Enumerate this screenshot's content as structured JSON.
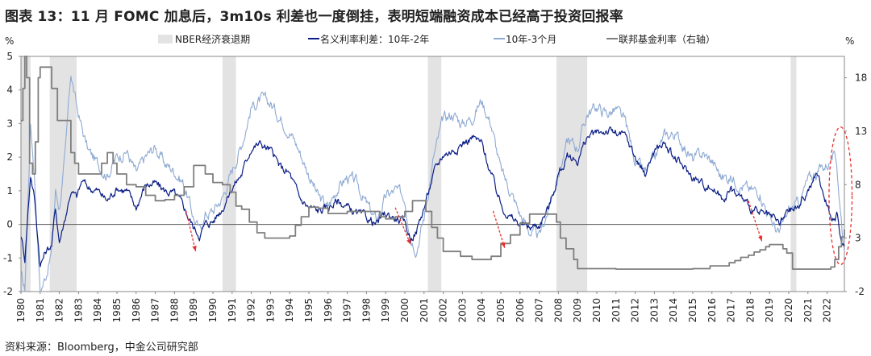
{
  "title": "图表 13：11 月 FOMC 加息后，3m10s 利差也一度倒挂，表明短端融资成本已经高于投资回报率",
  "source": "资料来源：Bloomberg，中金公司研究部",
  "chart_data": {
    "type": "line",
    "left_axis_unit": "%",
    "right_axis_unit": "%",
    "ylim_left": [
      -2,
      5
    ],
    "ylim_right": [
      -2,
      20
    ],
    "yticks_left": [
      "5",
      "4",
      "3",
      "2",
      "1",
      "0",
      "-1",
      "-2"
    ],
    "yticks_right": [
      "18",
      "13",
      "8",
      "3",
      "-2"
    ],
    "x_range": [
      1980.0,
      2022.9
    ],
    "xticks": [
      "1980",
      "1981",
      "1982",
      "1983",
      "1984",
      "1985",
      "1986",
      "1987",
      "1988",
      "1989",
      "1990",
      "1991",
      "1992",
      "1993",
      "1994",
      "1995",
      "1996",
      "1997",
      "1998",
      "1999",
      "2000",
      "2001",
      "2002",
      "2003",
      "2004",
      "2005",
      "2006",
      "2007",
      "2008",
      "2009",
      "2010",
      "2011",
      "2012",
      "2013",
      "2014",
      "2015",
      "2016",
      "2017",
      "2018",
      "2019",
      "2020",
      "2021",
      "2022"
    ],
    "legend": [
      "NBER经济衰退期",
      "名义利率利差：10年-2年",
      "10年-3个月",
      "联邦基金利率（右轴）"
    ],
    "colors": {
      "recession": "#e3e3e3",
      "spread_10y2y": "#0b1e86",
      "spread_10y3m": "#8eaad3",
      "fed_funds": "#7f7f7f",
      "arrow": "#e8312f",
      "ellipse": "#e8312f",
      "zero": "#555555"
    },
    "recessions": [
      [
        1980.0,
        1980.5
      ],
      [
        1981.5,
        1982.9
      ],
      [
        1990.5,
        1991.2
      ],
      [
        2001.2,
        2001.9
      ],
      [
        2007.9,
        2009.5
      ],
      [
        2020.1,
        2020.4
      ]
    ],
    "series": [
      {
        "name": "名义利率利差：10年-2年",
        "axis": "left",
        "x": [
          1980.0,
          1980.2,
          1980.5,
          1980.7,
          1981.0,
          1981.3,
          1981.6,
          1981.8,
          1982.0,
          1982.3,
          1982.6,
          1982.9,
          1983.2,
          1983.5,
          1984.0,
          1984.5,
          1985.0,
          1985.5,
          1986.0,
          1986.5,
          1987.0,
          1987.5,
          1988.0,
          1988.5,
          1989.0,
          1989.3,
          1989.6,
          1990.0,
          1990.5,
          1991.0,
          1991.5,
          1992.0,
          1992.5,
          1993.0,
          1993.5,
          1994.0,
          1994.5,
          1995.0,
          1995.5,
          1996.0,
          1996.5,
          1997.0,
          1997.5,
          1998.0,
          1998.5,
          1999.0,
          1999.5,
          2000.0,
          2000.3,
          2000.6,
          2001.0,
          2001.5,
          2002.0,
          2002.5,
          2003.0,
          2003.5,
          2004.0,
          2004.5,
          2005.0,
          2005.5,
          2006.0,
          2006.5,
          2007.0,
          2007.5,
          2008.0,
          2008.5,
          2009.0,
          2009.5,
          2010.0,
          2010.5,
          2011.0,
          2011.5,
          2012.0,
          2012.5,
          2013.0,
          2013.5,
          2014.0,
          2014.5,
          2015.0,
          2015.5,
          2016.0,
          2016.5,
          2017.0,
          2017.5,
          2018.0,
          2018.5,
          2019.0,
          2019.5,
          2020.0,
          2020.5,
          2021.0,
          2021.5,
          2022.0,
          2022.3,
          2022.5,
          2022.7,
          2022.9
        ],
        "values": [
          -0.3,
          -1.0,
          1.5,
          0.8,
          -1.2,
          -0.8,
          -0.6,
          0.5,
          -0.5,
          0.2,
          1.0,
          0.8,
          1.3,
          1.1,
          1.0,
          0.7,
          1.1,
          1.0,
          0.5,
          1.2,
          1.2,
          1.0,
          0.9,
          0.5,
          -0.1,
          -0.3,
          0.0,
          0.1,
          0.5,
          1.1,
          1.5,
          2.3,
          2.4,
          2.2,
          1.7,
          1.5,
          0.8,
          0.5,
          0.4,
          0.5,
          0.7,
          0.5,
          0.3,
          0.2,
          0.0,
          0.3,
          0.2,
          0.0,
          -0.4,
          -0.2,
          0.5,
          1.5,
          2.1,
          2.2,
          2.4,
          2.6,
          2.4,
          1.5,
          0.6,
          0.2,
          0.0,
          -0.1,
          0.0,
          0.5,
          1.5,
          2.0,
          1.9,
          2.6,
          2.7,
          2.8,
          2.7,
          2.6,
          2.0,
          1.5,
          2.2,
          2.4,
          2.0,
          1.7,
          1.4,
          1.2,
          1.1,
          0.8,
          1.0,
          0.8,
          0.5,
          0.3,
          0.2,
          0.0,
          0.4,
          0.5,
          1.0,
          1.5,
          0.6,
          0.2,
          0.3,
          -0.4,
          -0.6
        ]
      },
      {
        "name": "10年-3个月",
        "axis": "left",
        "x": [
          1980.0,
          1980.2,
          1980.5,
          1980.7,
          1981.0,
          1981.3,
          1981.6,
          1981.8,
          1982.0,
          1982.3,
          1982.6,
          1982.9,
          1983.2,
          1983.5,
          1984.0,
          1984.5,
          1985.0,
          1985.5,
          1986.0,
          1986.5,
          1987.0,
          1987.5,
          1988.0,
          1988.5,
          1989.0,
          1989.3,
          1989.6,
          1990.0,
          1990.5,
          1991.0,
          1991.5,
          1992.0,
          1992.5,
          1993.0,
          1993.5,
          1994.0,
          1994.5,
          1995.0,
          1995.5,
          1996.0,
          1996.5,
          1997.0,
          1997.5,
          1998.0,
          1998.5,
          1999.0,
          1999.5,
          2000.0,
          2000.3,
          2000.6,
          2001.0,
          2001.5,
          2002.0,
          2002.5,
          2003.0,
          2003.5,
          2004.0,
          2004.5,
          2005.0,
          2005.5,
          2006.0,
          2006.5,
          2007.0,
          2007.5,
          2008.0,
          2008.5,
          2009.0,
          2009.5,
          2010.0,
          2010.5,
          2011.0,
          2011.5,
          2012.0,
          2012.5,
          2013.0,
          2013.5,
          2014.0,
          2014.5,
          2015.0,
          2015.5,
          2016.0,
          2016.5,
          2017.0,
          2017.5,
          2018.0,
          2018.5,
          2019.0,
          2019.5,
          2020.0,
          2020.5,
          2021.0,
          2021.5,
          2022.0,
          2022.3,
          2022.5,
          2022.7,
          2022.9
        ],
        "values": [
          -1.5,
          -2.0,
          3.0,
          1.5,
          -2.0,
          -1.5,
          -0.8,
          1.0,
          0.5,
          2.0,
          4.5,
          3.5,
          2.8,
          2.2,
          1.8,
          1.5,
          2.0,
          2.2,
          1.5,
          2.0,
          2.3,
          1.8,
          1.6,
          1.2,
          0.2,
          -0.2,
          0.3,
          0.4,
          0.8,
          1.6,
          2.4,
          3.5,
          3.7,
          3.6,
          3.2,
          2.8,
          2.2,
          1.5,
          0.8,
          0.5,
          1.1,
          1.4,
          1.2,
          0.6,
          0.1,
          0.8,
          1.0,
          0.8,
          -0.3,
          -0.7,
          0.2,
          2.0,
          3.1,
          3.3,
          3.0,
          3.2,
          3.7,
          3.0,
          1.6,
          1.0,
          0.3,
          -0.2,
          -0.4,
          0.5,
          1.5,
          2.5,
          2.3,
          3.3,
          3.5,
          3.3,
          3.4,
          3.0,
          1.9,
          1.5,
          1.9,
          2.6,
          2.7,
          2.4,
          1.9,
          2.1,
          1.9,
          1.4,
          1.4,
          1.2,
          1.0,
          1.0,
          0.2,
          -0.3,
          0.4,
          0.6,
          1.3,
          1.6,
          1.8,
          2.0,
          1.8,
          0.4,
          -0.8
        ]
      },
      {
        "name": "联邦基金利率（右轴）",
        "axis": "right",
        "x": [
          1980.0,
          1980.1,
          1980.2,
          1980.3,
          1980.45,
          1980.6,
          1980.75,
          1980.9,
          1981.0,
          1981.3,
          1981.6,
          1981.9,
          1982.1,
          1982.4,
          1982.6,
          1982.8,
          1983.0,
          1983.6,
          1984.2,
          1984.5,
          1984.8,
          1985.0,
          1985.5,
          1986.0,
          1986.5,
          1987.0,
          1987.5,
          1988.0,
          1988.5,
          1989.0,
          1989.3,
          1989.6,
          1990.0,
          1990.5,
          1990.9,
          1991.2,
          1991.5,
          1991.9,
          1992.3,
          1992.7,
          1993.0,
          1993.5,
          1994.0,
          1994.3,
          1994.6,
          1995.0,
          1995.5,
          1996.0,
          1996.5,
          1997.0,
          1997.5,
          1998.0,
          1998.7,
          1999.0,
          1999.5,
          2000.0,
          2000.4,
          2000.9,
          2001.1,
          2001.4,
          2001.7,
          2002.0,
          2002.5,
          2002.9,
          2003.5,
          2004.0,
          2004.5,
          2005.0,
          2005.5,
          2006.0,
          2006.5,
          2007.0,
          2007.6,
          2007.9,
          2008.1,
          2008.4,
          2008.8,
          2009.0,
          2010.0,
          2011.0,
          2012.0,
          2013.0,
          2014.0,
          2015.0,
          2015.9,
          2016.9,
          2017.2,
          2017.5,
          2017.9,
          2018.2,
          2018.5,
          2018.8,
          2019.0,
          2019.5,
          2019.7,
          2019.9,
          2020.1,
          2020.2,
          2021.0,
          2022.0,
          2022.2,
          2022.4,
          2022.6,
          2022.75,
          2022.9
        ],
        "values": [
          14,
          17,
          20,
          18,
          10,
          9,
          12,
          18,
          19,
          19,
          17,
          14,
          14,
          14,
          11,
          10,
          9,
          9,
          10,
          11,
          10,
          9,
          8,
          7.8,
          7,
          6.5,
          6.6,
          7,
          7.8,
          9.8,
          9.8,
          9,
          8.2,
          8,
          7.3,
          6,
          5.7,
          4.5,
          3.5,
          3,
          3,
          3,
          3.2,
          4.2,
          5,
          5.9,
          5.8,
          5.3,
          5.3,
          5.5,
          5.5,
          5.5,
          5,
          4.8,
          5,
          5.5,
          6.5,
          6.5,
          5.5,
          4,
          3,
          1.75,
          1.75,
          1.3,
          1,
          1,
          1.3,
          2.5,
          3.3,
          4.4,
          5.25,
          5.25,
          5.25,
          4.5,
          3,
          2,
          1,
          0.15,
          0.15,
          0.1,
          0.1,
          0.1,
          0.1,
          0.15,
          0.4,
          0.7,
          0.9,
          1.2,
          1.4,
          1.7,
          1.9,
          2.2,
          2.4,
          2.4,
          2,
          1.6,
          1.6,
          0.1,
          0.1,
          0.1,
          0.3,
          1.0,
          2.2,
          3.1,
          3.8
        ]
      }
    ],
    "arrows": [
      [
        1988.6,
        0.4,
        1989.1,
        -0.8
      ],
      [
        1999.5,
        0.5,
        2000.3,
        -0.6
      ],
      [
        2004.6,
        0.4,
        2005.2,
        -0.7
      ],
      [
        2017.9,
        0.7,
        2018.6,
        -0.5
      ]
    ],
    "highlight_ellipse": {
      "center_x": 2022.7,
      "center_y": 0.85,
      "radius_years": 0.6,
      "radius_pct": 2.05
    }
  }
}
